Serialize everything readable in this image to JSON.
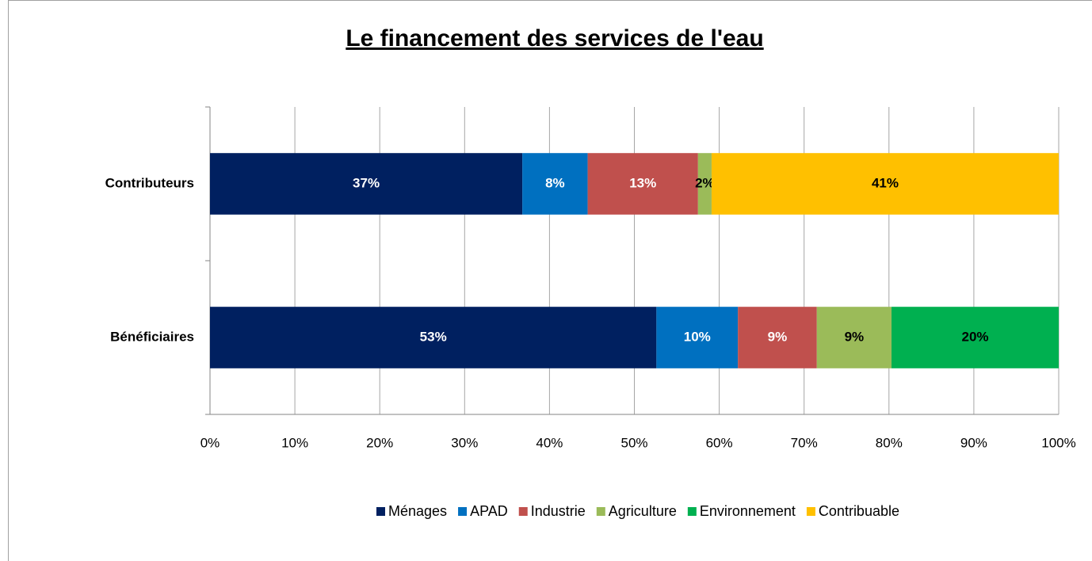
{
  "chart_data": {
    "type": "stacked_barh",
    "title": "Le financement des services de l'eau",
    "categories": [
      "Contributeurs",
      "Bénéficiaires"
    ],
    "series": [
      {
        "name": "Ménages",
        "color": "#002060",
        "label_color": "#ffffff",
        "values": [
          36.8,
          52.6
        ],
        "value_labels": [
          "37%",
          "53%"
        ]
      },
      {
        "name": "APAD",
        "color": "#0070c0",
        "label_color": "#ffffff",
        "values": [
          7.7,
          9.6
        ],
        "value_labels": [
          "8%",
          "10%"
        ]
      },
      {
        "name": "Industrie",
        "color": "#c0504d",
        "label_color": "#ffffff",
        "values": [
          13.0,
          9.3
        ],
        "value_labels": [
          "13%",
          "9%"
        ]
      },
      {
        "name": "Agriculture",
        "color": "#9bbb59",
        "label_color": "#000000",
        "values": [
          1.6,
          8.8
        ],
        "value_labels": [
          "2%",
          "9%"
        ]
      },
      {
        "name": "Environnement",
        "color": "#00b050",
        "label_color": "#000000",
        "values": [
          null,
          19.7
        ],
        "value_labels": [
          null,
          "20%"
        ]
      },
      {
        "name": "Contribuable",
        "color": "#ffc000",
        "label_color": "#000000",
        "values": [
          40.9,
          null
        ],
        "value_labels": [
          "41%",
          null
        ]
      }
    ],
    "xlim": [
      0,
      100
    ],
    "xticks": [
      {
        "value": 0,
        "label": "0%"
      },
      {
        "value": 10,
        "label": "10%"
      },
      {
        "value": 20,
        "label": "20%"
      },
      {
        "value": 30,
        "label": "30%"
      },
      {
        "value": 40,
        "label": "40%"
      },
      {
        "value": 50,
        "label": "50%"
      },
      {
        "value": 60,
        "label": "60%"
      },
      {
        "value": 70,
        "label": "70%"
      },
      {
        "value": 80,
        "label": "80%"
      },
      {
        "value": 90,
        "label": "90%"
      },
      {
        "value": 100,
        "label": "100%"
      }
    ],
    "grid": true,
    "legend": "bottom"
  }
}
